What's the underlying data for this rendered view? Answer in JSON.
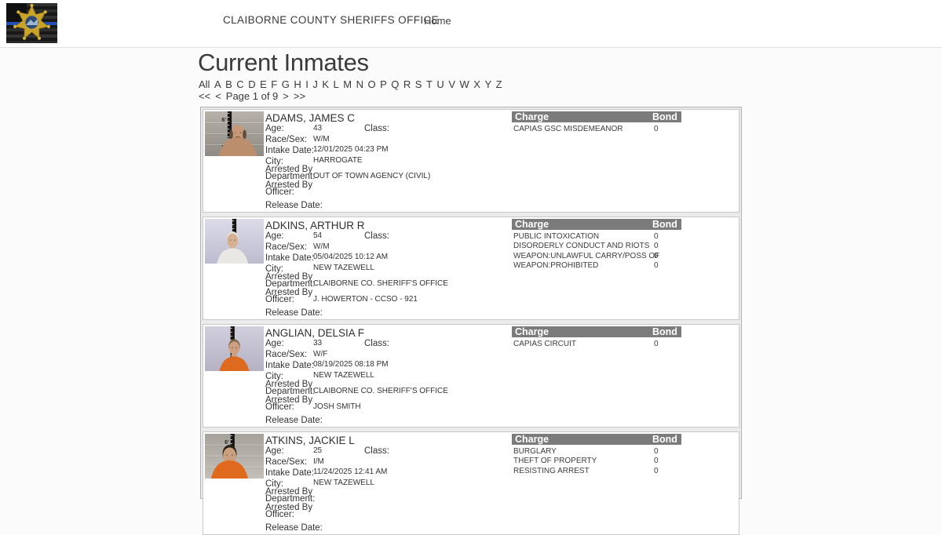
{
  "header": {
    "title": "CLAIBORNE COUNTY SHERIFFS OFFICE",
    "home_link": "Home"
  },
  "main": {
    "heading": "Current Inmates",
    "alphabet_filters": [
      "All",
      "A",
      "B",
      "C",
      "D",
      "E",
      "F",
      "G",
      "H",
      "I",
      "J",
      "K",
      "L",
      "M",
      "N",
      "O",
      "P",
      "Q",
      "R",
      "S",
      "T",
      "U",
      "V",
      "W",
      "X",
      "Y",
      "Z"
    ],
    "pagination": {
      "first": "<<",
      "prev": "<",
      "status": "Page 1 of 9",
      "next": ">",
      "last": ">>"
    }
  },
  "record_labels": {
    "age": "Age:",
    "class": "Class:",
    "race_sex": "Race/Sex:",
    "intake_date": "Intake Date:",
    "city": "City:",
    "arrested_by_department": "Arrested By\nDepartment:",
    "arrested_by_officer": "Arrested By\nOfficer:",
    "release_date": "Release Date:",
    "charge": "Charge",
    "bond": "Bond"
  },
  "colors": {
    "charge_header_bg": "#7b7b7b",
    "charge_header_text": "#ffffff",
    "body_text": "#333333"
  },
  "inmates": [
    {
      "name": "ADAMS, JAMES C",
      "age": "43",
      "class": "",
      "race_sex": "W/M",
      "intake_date": "12/01/2025 04:23 PM",
      "city": "HARROGATE",
      "arrested_by_department": "OUT OF TOWN AGENCY (CIVIL)",
      "arrested_by_officer": "",
      "release_date": "",
      "charges": [
        {
          "charge": "CAPIAS GSC MISDEMEANOR",
          "bond": "0"
        }
      ],
      "photo": {
        "wall_top": "#b6b2ab",
        "wall_bottom": "#8f8b84",
        "panels": true,
        "ruler_x": 0.42,
        "ruler_h": 0.6,
        "marks": [
          "6'",
          "5'"
        ],
        "skin": "#c59977",
        "hair": "#5f4c3c",
        "hair_style": "balding",
        "shirt": "#bb8f6d",
        "person_x": 0.56,
        "person_scale": 1.22,
        "mustache": true
      }
    },
    {
      "name": "ADKINS, ARTHUR R",
      "age": "54",
      "class": "",
      "race_sex": "W/M",
      "intake_date": "05/04/2025 10:12 AM",
      "city": "NEW TAZEWELL",
      "arrested_by_department": "CLAIBORNE CO. SHERIFF'S OFFICE",
      "arrested_by_officer": "J. HOWERTON - CCSO - 921",
      "release_date": "",
      "charges": [
        {
          "charge": "PUBLIC INTOXICATION",
          "bond": "0"
        },
        {
          "charge": "DISORDERLY CONDUCT AND RIOTS",
          "bond": "0"
        },
        {
          "charge": "WEAPON:UNLAWFUL CARRY/POSS OF",
          "bond": "0"
        },
        {
          "charge": "WEAPON:PROHIBITED",
          "bond": "0"
        }
      ],
      "photo": {
        "wall_top": "#dcdbe8",
        "wall_bottom": "#bdbccf",
        "panels": false,
        "ruler_x": 0.5,
        "ruler_h": 0.42,
        "marks": [],
        "skin": "#d6b194",
        "hair": "#e6e2da",
        "hair_style": "full",
        "shirt": "#eae8e4",
        "person_x": 0.47,
        "person_scale": 1.0,
        "mustache": false
      }
    },
    {
      "name": "ANGLIAN, DELSIA F",
      "age": "33",
      "class": "",
      "race_sex": "W/F",
      "intake_date": "08/19/2025 08:18 PM",
      "city": "NEW TAZEWELL",
      "arrested_by_department": "CLAIBORNE CO. SHERIFF'S OFFICE",
      "arrested_by_officer": "JOSH SMITH",
      "release_date": "",
      "charges": [
        {
          "charge": "CAPIAS CIRCUIT",
          "bond": "0"
        }
      ],
      "photo": {
        "wall_top": "#d2cfdd",
        "wall_bottom": "#b4b1c3",
        "panels": false,
        "ruler_x": 0.47,
        "ruler_h": 0.72,
        "marks": [],
        "skin": "#cda081",
        "hair": "#7d6348",
        "hair_style": "full",
        "shirt": "#dd6a1f",
        "person_x": 0.5,
        "person_scale": 0.95,
        "mustache": false
      }
    },
    {
      "name": "ATKINS, JACKIE L",
      "age": "25",
      "class": "",
      "race_sex": "I/M",
      "intake_date": "11/24/2025 12:41 AM",
      "city": "NEW TAZEWELL",
      "arrested_by_department": "",
      "arrested_by_officer": "",
      "release_date": "",
      "charges": [
        {
          "charge": "BURGLARY",
          "bond": "0"
        },
        {
          "charge": "THEFT OF PROPERTY",
          "bond": "0"
        },
        {
          "charge": "RESISTING ARREST",
          "bond": "0"
        }
      ],
      "photo": {
        "wall_top": "#a6a29b",
        "wall_bottom": "#c3bfb8",
        "panels": true,
        "ruler_x": 0.47,
        "ruler_h": 0.64,
        "marks": [
          "6'",
          "5'"
        ],
        "skin": "#c99f7e",
        "hair": "#262017",
        "hair_style": "full",
        "shirt": "#df6a1e",
        "person_x": 0.42,
        "person_scale": 1.18,
        "mustache": false
      }
    }
  ]
}
